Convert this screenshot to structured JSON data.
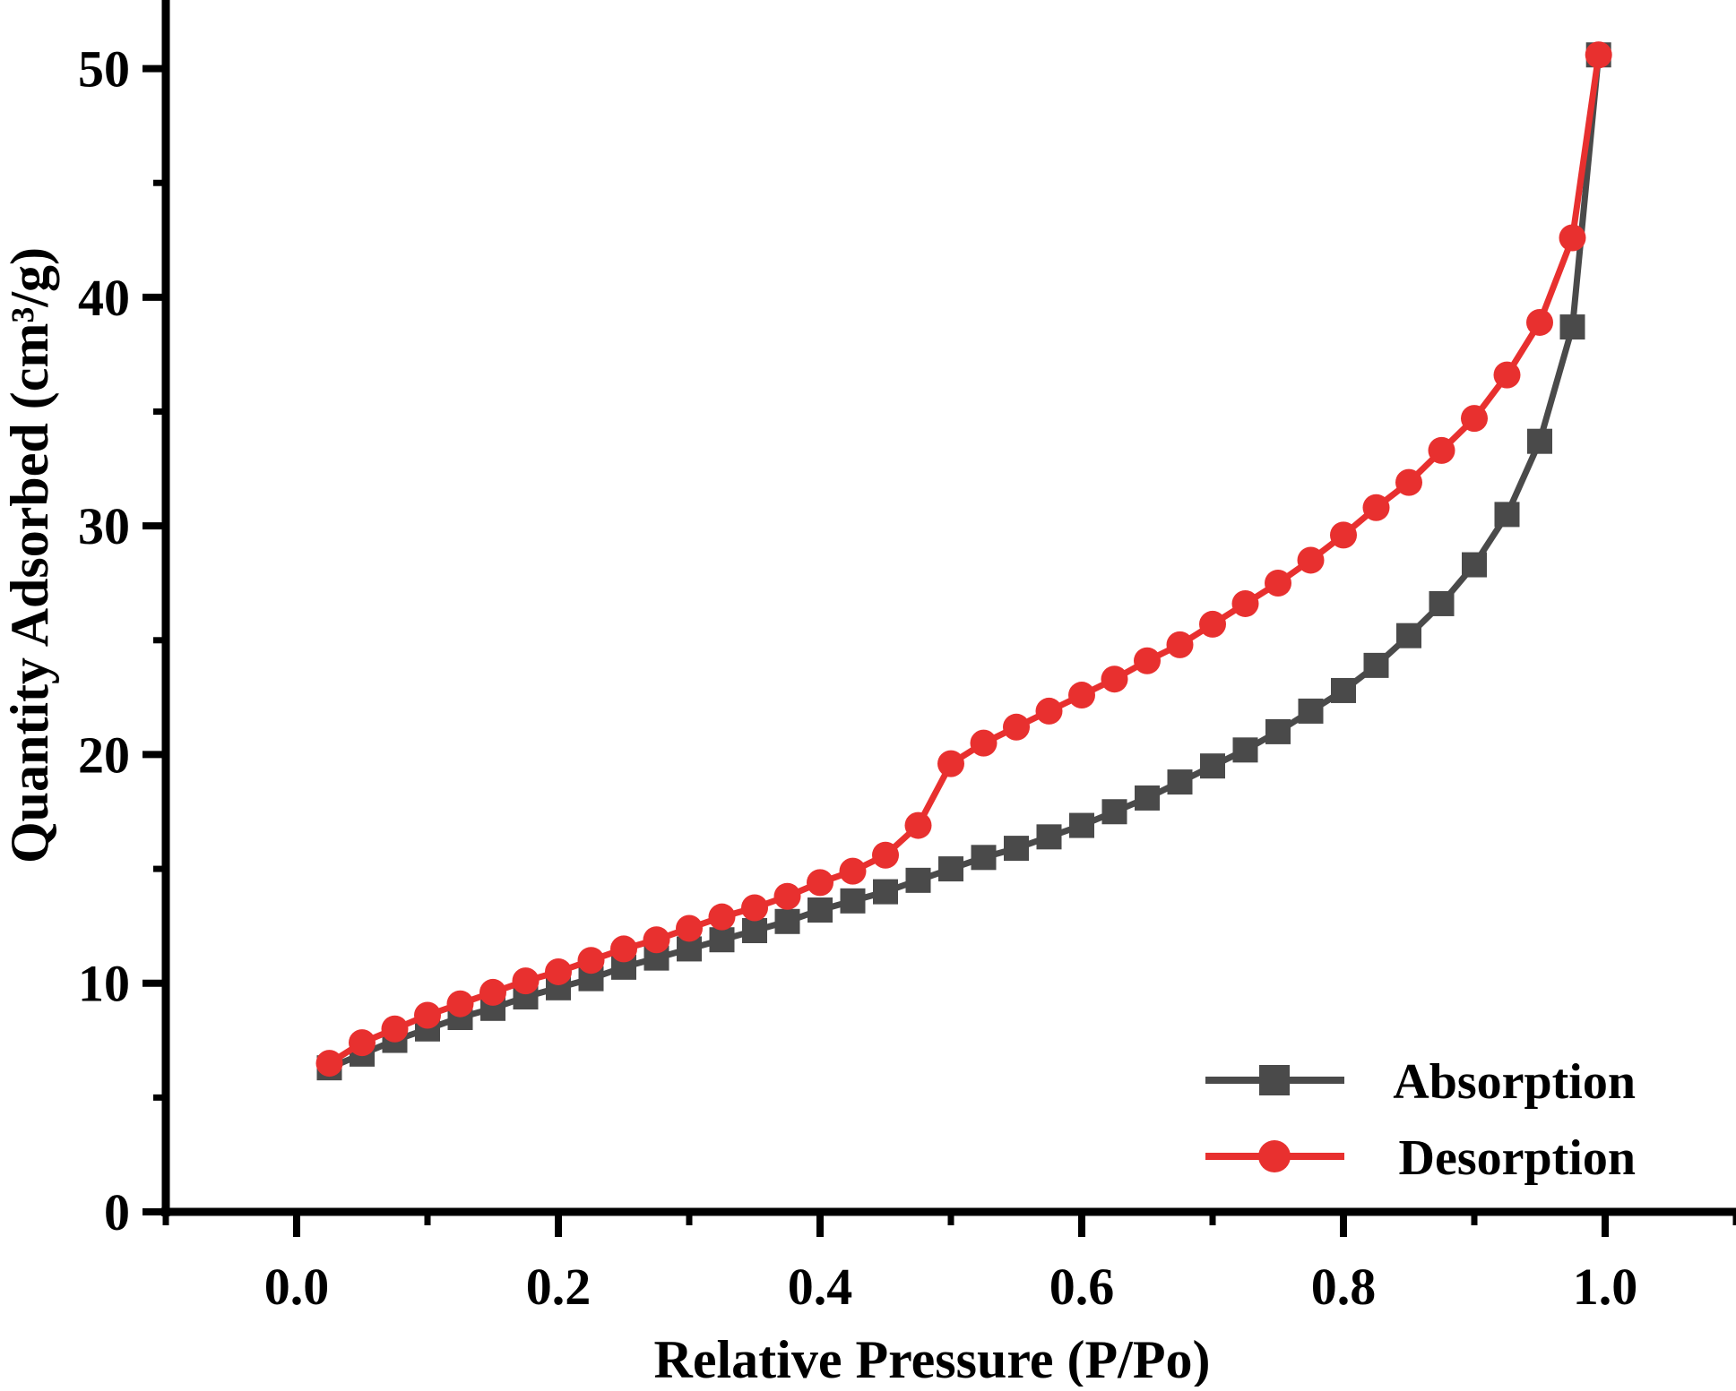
{
  "chart_data": {
    "type": "line",
    "title": "",
    "xlabel": "Relative Pressure (P/Po)",
    "ylabel": "Quantity Adsorbed (cm³/g)",
    "xlim": [
      -0.1,
      1.1
    ],
    "ylim": [
      0,
      53
    ],
    "xticks": [
      0.0,
      0.2,
      0.4,
      0.6,
      0.8,
      1.0
    ],
    "xtick_labels": [
      "0.0",
      "0.2",
      "0.4",
      "0.6",
      "0.8",
      "1.0"
    ],
    "yticks": [
      0,
      10,
      20,
      30,
      40,
      50
    ],
    "ytick_labels": [
      "0",
      "10",
      "20",
      "30",
      "40",
      "50"
    ],
    "grid": false,
    "legend_position": "bottom-right",
    "series": [
      {
        "name": "Absorption",
        "color": "#4a4a4a",
        "marker": "square",
        "x": [
          0.025,
          0.05,
          0.075,
          0.1,
          0.125,
          0.15,
          0.175,
          0.2,
          0.225,
          0.25,
          0.275,
          0.3,
          0.325,
          0.35,
          0.375,
          0.4,
          0.425,
          0.45,
          0.475,
          0.5,
          0.525,
          0.55,
          0.575,
          0.6,
          0.625,
          0.65,
          0.675,
          0.7,
          0.725,
          0.75,
          0.775,
          0.8,
          0.825,
          0.85,
          0.875,
          0.9,
          0.925,
          0.95,
          0.975,
          0.995
        ],
        "y": [
          6.3,
          6.9,
          7.5,
          8.0,
          8.5,
          8.9,
          9.4,
          9.8,
          10.2,
          10.7,
          11.1,
          11.5,
          11.9,
          12.3,
          12.7,
          13.2,
          13.6,
          14.0,
          14.5,
          15.0,
          15.5,
          15.9,
          16.4,
          16.9,
          17.5,
          18.1,
          18.8,
          19.5,
          20.2,
          21.0,
          21.9,
          22.8,
          23.9,
          25.2,
          26.6,
          28.3,
          30.5,
          33.7,
          38.7,
          50.6
        ]
      },
      {
        "name": "Desorption",
        "color": "#e8302f",
        "marker": "circle",
        "x": [
          0.025,
          0.05,
          0.075,
          0.1,
          0.125,
          0.15,
          0.175,
          0.2,
          0.225,
          0.25,
          0.275,
          0.3,
          0.325,
          0.35,
          0.375,
          0.4,
          0.425,
          0.45,
          0.475,
          0.5,
          0.525,
          0.55,
          0.575,
          0.6,
          0.625,
          0.65,
          0.675,
          0.7,
          0.725,
          0.75,
          0.775,
          0.8,
          0.825,
          0.85,
          0.875,
          0.9,
          0.925,
          0.95,
          0.975,
          0.995
        ],
        "y": [
          6.5,
          7.4,
          8.0,
          8.6,
          9.1,
          9.6,
          10.1,
          10.5,
          11.0,
          11.5,
          11.9,
          12.4,
          12.9,
          13.3,
          13.8,
          14.4,
          14.9,
          15.6,
          16.9,
          19.6,
          20.5,
          21.2,
          21.9,
          22.6,
          23.3,
          24.1,
          24.8,
          25.7,
          26.6,
          27.5,
          28.5,
          29.6,
          30.8,
          31.9,
          33.3,
          34.7,
          36.6,
          38.9,
          42.6,
          50.6
        ]
      }
    ]
  }
}
